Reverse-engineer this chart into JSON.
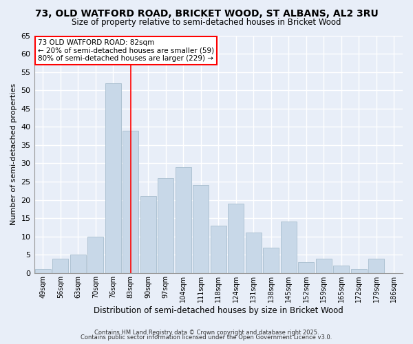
{
  "title_line1": "73, OLD WATFORD ROAD, BRICKET WOOD, ST ALBANS, AL2 3RU",
  "title_line2": "Size of property relative to semi-detached houses in Bricket Wood",
  "xlabel": "Distribution of semi-detached houses by size in Bricket Wood",
  "ylabel": "Number of semi-detached properties",
  "bar_labels": [
    "49sqm",
    "56sqm",
    "63sqm",
    "70sqm",
    "76sqm",
    "83sqm",
    "90sqm",
    "97sqm",
    "104sqm",
    "111sqm",
    "118sqm",
    "124sqm",
    "131sqm",
    "138sqm",
    "145sqm",
    "152sqm",
    "159sqm",
    "165sqm",
    "172sqm",
    "179sqm",
    "186sqm"
  ],
  "bar_values": [
    1,
    4,
    5,
    10,
    52,
    39,
    21,
    26,
    29,
    24,
    13,
    19,
    11,
    7,
    14,
    3,
    4,
    2,
    1,
    4,
    0
  ],
  "bar_color": "#c8d8e8",
  "bar_edge_color": "#a8bece",
  "vline_color": "red",
  "ylim": [
    0,
    65
  ],
  "yticks": [
    0,
    5,
    10,
    15,
    20,
    25,
    30,
    35,
    40,
    45,
    50,
    55,
    60,
    65
  ],
  "annotation_title": "73 OLD WATFORD ROAD: 82sqm",
  "annotation_line1": "← 20% of semi-detached houses are smaller (59)",
  "annotation_line2": "80% of semi-detached houses are larger (229) →",
  "footer_line1": "Contains HM Land Registry data © Crown copyright and database right 2025.",
  "footer_line2": "Contains public sector information licensed under the Open Government Licence v3.0.",
  "background_color": "#e8eef8",
  "plot_background": "#e8eef8",
  "grid_color": "white"
}
